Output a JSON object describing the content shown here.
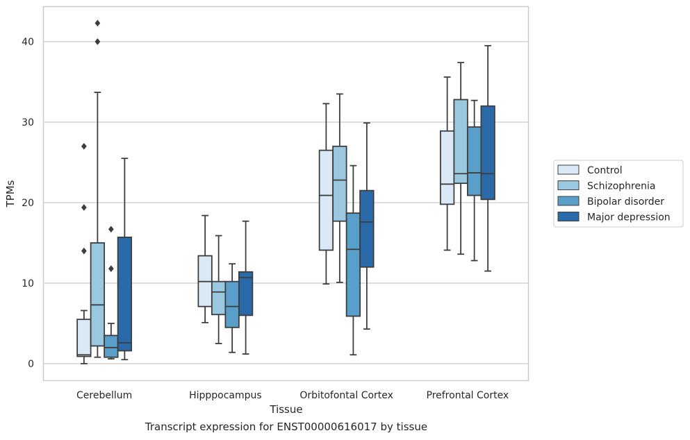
{
  "caption": "Transcript expression for ENST00000616017 by tissue",
  "chart_data": {
    "type": "box",
    "xlabel": "Tissue",
    "ylabel": "TPMs",
    "ylim": [
      -2,
      44
    ],
    "yticks": [
      0,
      10,
      20,
      30,
      40
    ],
    "grid": "horizontal",
    "legend_position": "right",
    "categories": [
      "Cerebellum",
      "Hipppocampus",
      "Orbitofontal Cortex",
      "Prefrontal Cortex"
    ],
    "series": [
      {
        "name": "Control",
        "color": "#dbe9f6",
        "boxes": [
          {
            "whisker_low": 0.0,
            "q1": 0.9,
            "median": 1.1,
            "q3": 5.5,
            "whisker_high": 6.6,
            "outliers": [
              14.0,
              19.4,
              27.0
            ]
          },
          {
            "whisker_low": 5.1,
            "q1": 7.1,
            "median": 10.2,
            "q3": 13.4,
            "whisker_high": 18.4,
            "outliers": []
          },
          {
            "whisker_low": 9.9,
            "q1": 14.1,
            "median": 20.9,
            "q3": 26.5,
            "whisker_high": 32.3,
            "outliers": []
          },
          {
            "whisker_low": 14.1,
            "q1": 19.8,
            "median": 22.3,
            "q3": 28.9,
            "whisker_high": 35.6,
            "outliers": []
          }
        ]
      },
      {
        "name": "Schizophrenia",
        "color": "#9ac8e0",
        "boxes": [
          {
            "whisker_low": 0.8,
            "q1": 2.2,
            "median": 7.3,
            "q3": 15.0,
            "whisker_high": 33.7,
            "outliers": [
              40.0,
              42.3
            ]
          },
          {
            "whisker_low": 2.5,
            "q1": 6.1,
            "median": 8.9,
            "q3": 10.2,
            "whisker_high": 15.9,
            "outliers": []
          },
          {
            "whisker_low": 10.1,
            "q1": 17.7,
            "median": 22.8,
            "q3": 27.0,
            "whisker_high": 33.5,
            "outliers": []
          },
          {
            "whisker_low": 13.6,
            "q1": 22.4,
            "median": 23.6,
            "q3": 32.8,
            "whisker_high": 37.4,
            "outliers": []
          }
        ]
      },
      {
        "name": "Bipolar disorder",
        "color": "#5a9fca",
        "boxes": [
          {
            "whisker_low": 0.6,
            "q1": 0.8,
            "median": 2.0,
            "q3": 3.5,
            "whisker_high": 5.0,
            "outliers": [
              11.8,
              16.7
            ]
          },
          {
            "whisker_low": 1.4,
            "q1": 4.5,
            "median": 7.1,
            "q3": 10.2,
            "whisker_high": 12.4,
            "outliers": []
          },
          {
            "whisker_low": 1.1,
            "q1": 5.9,
            "median": 14.2,
            "q3": 18.7,
            "whisker_high": 24.6,
            "outliers": []
          },
          {
            "whisker_low": 12.8,
            "q1": 20.9,
            "median": 23.7,
            "q3": 29.4,
            "whisker_high": 32.7,
            "outliers": []
          }
        ]
      },
      {
        "name": "Major depression",
        "color": "#2a6aa8",
        "boxes": [
          {
            "whisker_low": 0.5,
            "q1": 1.6,
            "median": 2.6,
            "q3": 15.7,
            "whisker_high": 25.5,
            "outliers": []
          },
          {
            "whisker_low": 1.2,
            "q1": 6.0,
            "median": 10.7,
            "q3": 11.4,
            "whisker_high": 17.7,
            "outliers": []
          },
          {
            "whisker_low": 4.3,
            "q1": 12.0,
            "median": 17.6,
            "q3": 21.5,
            "whisker_high": 29.9,
            "outliers": []
          },
          {
            "whisker_low": 11.5,
            "q1": 20.4,
            "median": 23.6,
            "q3": 32.0,
            "whisker_high": 39.5,
            "outliers": []
          }
        ]
      }
    ]
  }
}
